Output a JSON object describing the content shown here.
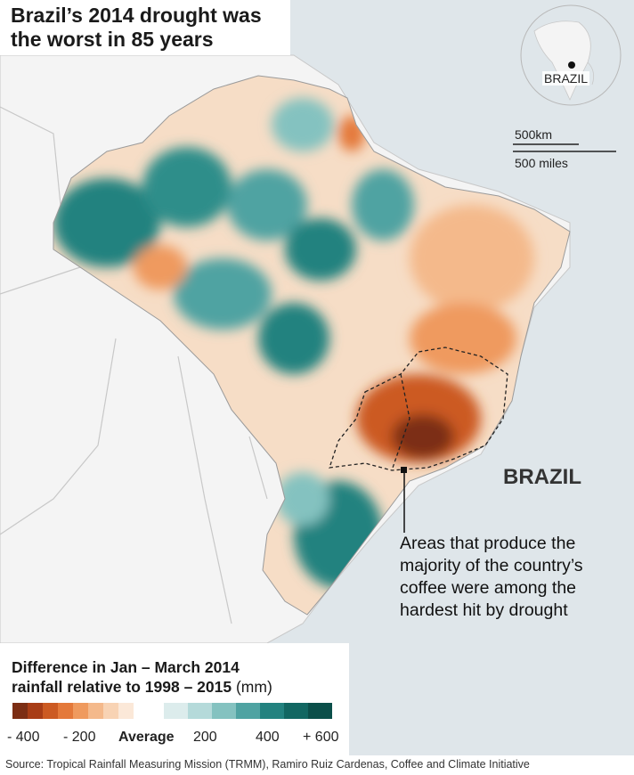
{
  "title": {
    "line1": "Brazil’s 2014 drought was",
    "line2": "the worst in 85 years"
  },
  "locator": {
    "label": "BRAZIL",
    "scale_km": "500km",
    "scale_miles": "500 miles"
  },
  "map": {
    "country_label": "BRAZIL",
    "icon": "location-marker",
    "colors": {
      "ocean": "#dfe6ea",
      "land": "#f4f4f4",
      "borders": "#c8c8c8"
    }
  },
  "annotation": {
    "lines": [
      "Areas that produce the",
      "majority of the country’s",
      "coffee were among the",
      "hardest hit by drought"
    ]
  },
  "legend": {
    "title_line1": "Difference in Jan – March 2014",
    "title_line2": "rainfall relative to 1998 – 2015",
    "unit": "(mm)",
    "ticks": {
      "neg400": "- 400",
      "neg200": "- 200",
      "average": "Average",
      "pos200": "200",
      "pos400": "400",
      "pos600": "+ 600"
    },
    "colors": [
      "#7c2e14",
      "#a83d16",
      "#cc5a22",
      "#e4793a",
      "#ef9a5e",
      "#f4b98b",
      "#f8d3b4",
      "#fbe8d8",
      "#dcecec",
      "#b5dada",
      "#84c2c0",
      "#4fa3a2",
      "#23827f",
      "#126762",
      "#0b4f4a"
    ]
  },
  "source": "Source: Tropical Rainfall Measuring Mission (TRMM), Ramiro Ruiz Cardenas, Coffee and Climate Initiative"
}
